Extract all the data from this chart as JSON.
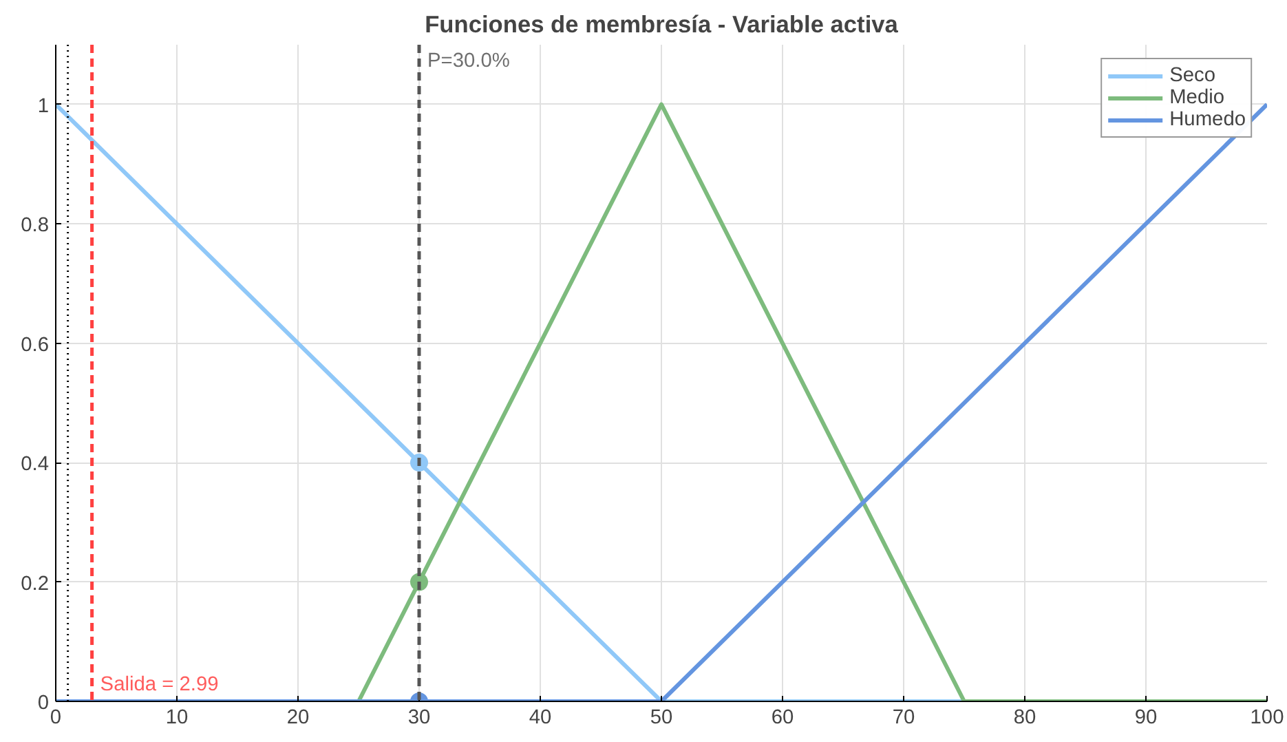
{
  "chart_data": {
    "type": "line",
    "title": "Funciones de membresía - Variable activa",
    "xlim": [
      0,
      100
    ],
    "xticks": [
      0,
      10,
      20,
      30,
      40,
      50,
      60,
      70,
      80,
      90,
      100
    ],
    "ylim": [
      0,
      1.1
    ],
    "yticks": [
      0,
      0.2,
      0.4,
      0.6,
      0.8,
      1
    ],
    "grid": true,
    "legend": "top right",
    "marker": "none",
    "line_style": "solid",
    "series": [
      {
        "name": "Seco",
        "color": "#90c8f8",
        "x": [
          0,
          50,
          100
        ],
        "values": [
          1,
          0,
          0
        ]
      },
      {
        "name": "Medio",
        "color": "#7dbb7d",
        "x": [
          0,
          25,
          50,
          75,
          100
        ],
        "values": [
          0,
          0,
          1,
          0,
          0
        ]
      },
      {
        "name": "Humedo",
        "color": "#6495e0",
        "x": [
          0,
          50,
          100
        ],
        "values": [
          0,
          0,
          1
        ]
      },
      {
        "type": "scatter",
        "marker": "circle",
        "x": [
          30,
          30,
          30
        ],
        "values": [
          0.4,
          0.2,
          0
        ],
        "colors": [
          "#90c8f8",
          "#7dbb7d",
          "#6495e0"
        ]
      }
    ],
    "ref_lines": [
      {
        "axis": "x",
        "value": 1,
        "color": "#000000",
        "line_style": "dotted"
      },
      {
        "axis": "x",
        "value": 2.99,
        "label": "Salida = 2.99",
        "color": "#ff4040",
        "line_style": "dashed"
      },
      {
        "axis": "x",
        "value": 30,
        "label": "P=30.0%",
        "color": "#555555",
        "line_style": "dashed"
      }
    ]
  }
}
